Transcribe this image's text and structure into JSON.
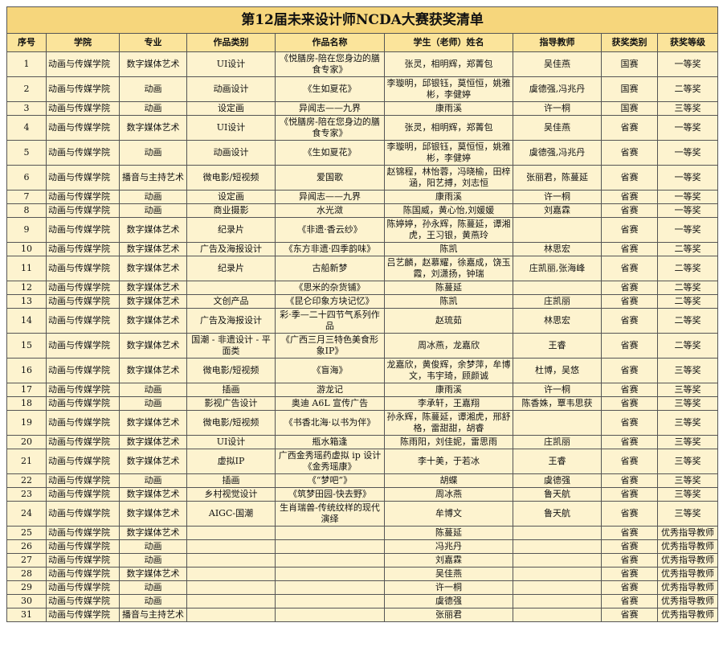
{
  "header": {
    "title": "第12届未来设计师NCDA大赛获奖清单"
  },
  "table": {
    "columns": [
      "序号",
      "学院",
      "专业",
      "作品类别",
      "作品名称",
      "学生（老师）姓名",
      "指导教师",
      "获奖类别",
      "获奖等级"
    ],
    "rows": [
      [
        1,
        "动画与传媒学院",
        "数字媒体艺术",
        "UI设计",
        "《悦膳房-陪在您身边的膳食专家》",
        "张灵，相明辉，郑菁包",
        "吴佳燕",
        "国赛",
        "一等奖"
      ],
      [
        2,
        "动画与传媒学院",
        "动画",
        "动画设计",
        "《生如夏花》",
        "李璇明，邱银钰，莫恒恒，姚雅彬，李健婷",
        "虞德强,冯兆丹",
        "国赛",
        "二等奖"
      ],
      [
        3,
        "动画与传媒学院",
        "动画",
        "设定画",
        "异闻志——九界",
        "康雨溪",
        "许一桐",
        "国赛",
        "三等奖"
      ],
      [
        4,
        "动画与传媒学院",
        "数字媒体艺术",
        "UI设计",
        "《悦膳房-陪在您身边的膳食专家》",
        "张灵，相明辉，郑菁包",
        "吴佳燕",
        "省赛",
        "一等奖"
      ],
      [
        5,
        "动画与传媒学院",
        "动画",
        "动画设计",
        "《生如夏花》",
        "李璇明，邱银钰，莫恒恒，姚雅彬，李健婷",
        "虞德强,冯兆丹",
        "省赛",
        "一等奖"
      ],
      [
        6,
        "动画与传媒学院",
        "播音与主持艺术",
        "微电影/短视频",
        "爱国歌",
        "赵锦程，林怡蓉，冯晓榆，田梓涵，阳艺搏，刘志恒",
        "张丽君，陈蔓延",
        "省赛",
        "一等奖"
      ],
      [
        7,
        "动画与传媒学院",
        "动画",
        "设定画",
        "异闻志——九界",
        "康雨溪",
        "许一桐",
        "省赛",
        "一等奖"
      ],
      [
        8,
        "动画与传媒学院",
        "动画",
        "商业摄影",
        "水光潋",
        "陈国威，黄心怡,刘媛媛",
        "刘嘉霖",
        "省赛",
        "一等奖"
      ],
      [
        9,
        "动画与传媒学院",
        "数字媒体艺术",
        "纪录片",
        "《非遗·香云纱》",
        "陈婷婷，孙永辉，陈蔓延，谭湘虎，王习银，黄燕玲",
        null,
        "省赛",
        "一等奖"
      ],
      [
        10,
        "动画与传媒学院",
        "数字媒体艺术",
        "广告及海报设计",
        "《东方非遗·四季韵味》",
        "陈凯",
        "林思宏",
        "省赛",
        "二等奖"
      ],
      [
        11,
        "动画与传媒学院",
        "数字媒体艺术",
        "纪录片",
        "古船新梦",
        "吕艺麟，赵慕耀，徐嘉成，饶玉霞，刘潇扬，钟瑞",
        "庄凯丽,张海峰",
        "省赛",
        "二等奖"
      ],
      [
        12,
        "动画与传媒学院",
        "数字媒体艺术",
        null,
        "《思米的杂货铺》",
        "陈蔓延",
        null,
        "省赛",
        "二等奖"
      ],
      [
        13,
        "动画与传媒学院",
        "数字媒体艺术",
        "文创产品",
        "《昆仑印象方块记忆》",
        "陈凯",
        "庄凯丽",
        "省赛",
        "二等奖"
      ],
      [
        14,
        "动画与传媒学院",
        "数字媒体艺术",
        "广告及海报设计",
        "彩·季—二十四节气系列作品",
        "赵琉茹",
        "林思宏",
        "省赛",
        "二等奖"
      ],
      [
        15,
        "动画与传媒学院",
        "数字媒体艺术",
        "国潮 - 非遗设计 - 平面类",
        "《广西三月三特色美食形象IP》",
        "周冰燕，龙嘉欣",
        "王睿",
        "省赛",
        "二等奖"
      ],
      [
        16,
        "动画与传媒学院",
        "数字媒体艺术",
        "微电影/短视频",
        "《盲海》",
        "龙嘉欣，黄俊辉，余梦萍，牟博文，韦宇琦，顾颜诚",
        "杜博，吴悠",
        "省赛",
        "三等奖"
      ],
      [
        17,
        "动画与传媒学院",
        "动画",
        "插画",
        "游龙记",
        "康雨溪",
        "许一桐",
        "省赛",
        "三等奖"
      ],
      [
        18,
        "动画与传媒学院",
        "动画",
        "影视广告设计",
        "奥迪 A6L 宣传广告",
        "李承轩，王嘉翔",
        "陈香姝，覃韦思获",
        "省赛",
        "三等奖"
      ],
      [
        19,
        "动画与传媒学院",
        "数字媒体艺术",
        "微电影/短视频",
        "《书香北海·以书为伴》",
        "孙永辉，陈蔓延，谭湘虎，邢舒格，雷甜甜，胡睿",
        null,
        "省赛",
        "三等奖"
      ],
      [
        20,
        "动画与传媒学院",
        "数字媒体艺术",
        "UI设计",
        "瓶水箱逢",
        "陈雨阳，刘佳妮，雷思雨",
        "庄凯丽",
        "省赛",
        "三等奖"
      ],
      [
        21,
        "动画与传媒学院",
        "数字媒体艺术",
        "虚拟IP",
        "广西金秀瑶药虚拟 ip 设计《金秀瑶康》",
        "李十美，于若冰",
        "王睿",
        "省赛",
        "三等奖"
      ],
      [
        22,
        "动画与传媒学院",
        "动画",
        "插画",
        "《“梦吧”》",
        "胡蝶",
        "虞德强",
        "省赛",
        "三等奖"
      ],
      [
        23,
        "动画与传媒学院",
        "数字媒体艺术",
        "乡村视觉设计",
        "《筑梦田园-快去野》",
        "周冰燕",
        "鲁天航",
        "省赛",
        "三等奖"
      ],
      [
        24,
        "动画与传媒学院",
        "数字媒体艺术",
        "AIGC-国潮",
        "生肖瑞兽-传统纹样的现代演绎",
        "牟博文",
        "鲁天航",
        "省赛",
        "三等奖"
      ],
      [
        25,
        "动画与传媒学院",
        "数字媒体艺术",
        null,
        null,
        "陈蔓延",
        null,
        "省赛",
        "优秀指导教师"
      ],
      [
        26,
        "动画与传媒学院",
        "动画",
        null,
        null,
        "冯兆丹",
        null,
        "省赛",
        "优秀指导教师"
      ],
      [
        27,
        "动画与传媒学院",
        "动画",
        null,
        null,
        "刘嘉霖",
        null,
        "省赛",
        "优秀指导教师"
      ],
      [
        28,
        "动画与传媒学院",
        "数字媒体艺术",
        null,
        null,
        "吴佳燕",
        null,
        "省赛",
        "优秀指导教师"
      ],
      [
        29,
        "动画与传媒学院",
        "动画",
        null,
        null,
        "许一桐",
        null,
        "省赛",
        "优秀指导教师"
      ],
      [
        30,
        "动画与传媒学院",
        "动画",
        null,
        null,
        "虞德强",
        null,
        "省赛",
        "优秀指导教师"
      ],
      [
        31,
        "动画与传媒学院",
        "播音与主持艺术",
        null,
        null,
        "张丽君",
        null,
        "省赛",
        "优秀指导教师"
      ]
    ]
  }
}
